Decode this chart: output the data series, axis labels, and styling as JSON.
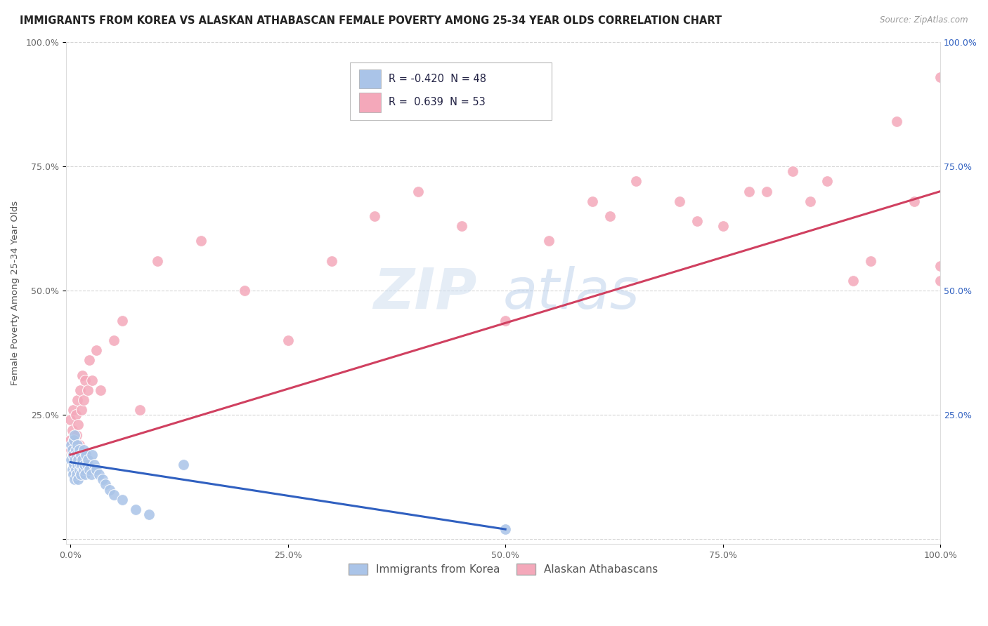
{
  "title": "IMMIGRANTS FROM KOREA VS ALASKAN ATHABASCAN FEMALE POVERTY AMONG 25-34 YEAR OLDS CORRELATION CHART",
  "source": "Source: ZipAtlas.com",
  "ylabel": "Female Poverty Among 25-34 Year Olds",
  "xlabel": "",
  "watermark_zip": "ZIP",
  "watermark_atlas": "atlas",
  "korea_R": -0.42,
  "korea_N": 48,
  "athabascan_R": 0.639,
  "athabascan_N": 53,
  "korea_color": "#aac4e8",
  "athabascan_color": "#f4a8ba",
  "korea_line_color": "#3060c0",
  "athabascan_line_color": "#d04060",
  "legend_label_korea": "Immigrants from Korea",
  "legend_label_athabascan": "Alaskan Athabascans",
  "xlim": [
    -0.005,
    1.0
  ],
  "ylim": [
    -0.01,
    1.0
  ],
  "xtick_vals": [
    0.0,
    0.25,
    0.5,
    0.75,
    1.0
  ],
  "xticklabels": [
    "0.0%",
    "25.0%",
    "50.0%",
    "75.0%",
    "100.0%"
  ],
  "ytick_vals": [
    0.0,
    0.25,
    0.5,
    0.75,
    1.0
  ],
  "yticklabels": [
    "",
    "25.0%",
    "50.0%",
    "75.0%",
    "100.0%"
  ],
  "right_yticklabels": [
    "25.0%",
    "50.0%",
    "75.0%",
    "100.0%"
  ],
  "background_color": "#ffffff",
  "grid_color": "#cccccc",
  "title_fontsize": 10.5,
  "label_fontsize": 9.5,
  "tick_fontsize": 9,
  "legend_fontsize": 10,
  "korea_line_x0": 0.0,
  "korea_line_y0": 0.155,
  "korea_line_x1": 0.5,
  "korea_line_y1": 0.02,
  "ath_line_x0": 0.0,
  "ath_line_y0": 0.17,
  "ath_line_x1": 1.0,
  "ath_line_y1": 0.7
}
